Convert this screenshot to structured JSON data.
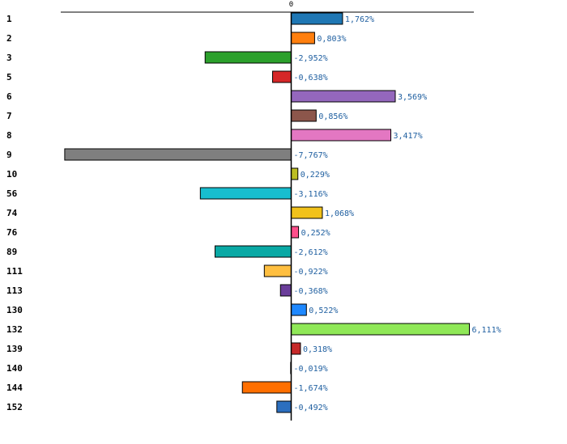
{
  "chart_data": {
    "type": "bar",
    "orientation": "horizontal",
    "title": "",
    "xlabel": "",
    "ylabel": "",
    "zero_label": "0",
    "xlim": [
      -8.0,
      8.0
    ],
    "grid": false,
    "legend": "none",
    "categories": [
      "1",
      "2",
      "3",
      "5",
      "6",
      "7",
      "8",
      "9",
      "10",
      "56",
      "74",
      "76",
      "89",
      "111",
      "113",
      "130",
      "132",
      "139",
      "140",
      "144",
      "152"
    ],
    "values": [
      1.762,
      0.803,
      -2.952,
      -0.638,
      3.569,
      0.856,
      3.417,
      -7.767,
      0.229,
      -3.116,
      1.068,
      0.252,
      -2.612,
      -0.922,
      -0.368,
      0.522,
      6.111,
      0.318,
      -0.019,
      -1.674,
      -0.492
    ],
    "value_labels": [
      "1,762%",
      "0,803%",
      "-2,952%",
      "-0,638%",
      "3,569%",
      "0,856%",
      "3,417%",
      "-7,767%",
      "0,229%",
      "-3,116%",
      "1,068%",
      "0,252%",
      "-2,612%",
      "-0,922%",
      "-0,368%",
      "0,522%",
      "6,111%",
      "0,318%",
      "-0,019%",
      "-1,674%",
      "-0,492%"
    ],
    "colors": [
      "#1f77b4",
      "#ff7f0e",
      "#2ca02c",
      "#d62728",
      "#9467bd",
      "#8c564b",
      "#e377c2",
      "#7f7f7f",
      "#bcbd22",
      "#17becf",
      "#f1c21b",
      "#ff4f8b",
      "#0aa9a5",
      "#ffbf40",
      "#6a3d9a",
      "#1e88ff",
      "#8fe857",
      "#c62828",
      "#4a90d9",
      "#ff6f00",
      "#2c6fbf"
    ]
  }
}
